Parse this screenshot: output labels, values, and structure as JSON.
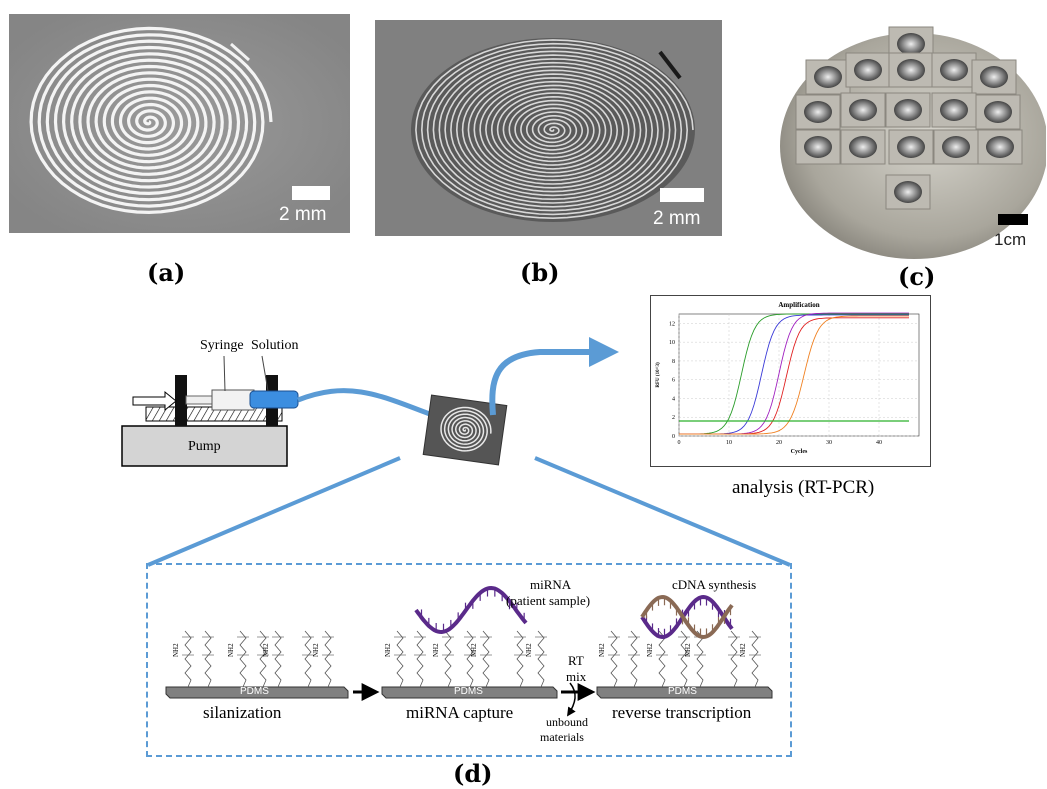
{
  "panels": {
    "a": {
      "label": "(a)",
      "scale": "2 mm"
    },
    "b": {
      "label": "(b)",
      "scale": "2 mm"
    },
    "c": {
      "label": "(c)",
      "scale": "1cm"
    },
    "d": {
      "label": "(d)"
    }
  },
  "setup": {
    "syringe": "Syringe",
    "solution": "Solution",
    "pump": "Pump"
  },
  "chart": {
    "title": "Amplification",
    "ylabel": "RFU (10^3)",
    "xlabel": "Cycles",
    "caption": "analysis (RT-PCR)"
  },
  "chart_data": {
    "type": "line",
    "title": "Amplification",
    "xlabel": "Cycles",
    "ylabel": "RFU (10^3)",
    "xlim": [
      0,
      48
    ],
    "ylim": [
      0,
      13
    ],
    "xticks": [
      0,
      10,
      20,
      30,
      40
    ],
    "yticks": [
      0,
      2,
      4,
      6,
      8,
      10,
      12
    ],
    "series_colors": [
      "#2a9d2a",
      "#3a3ad8",
      "#a020c0",
      "#e02020",
      "#f08020",
      "#2ab02a"
    ],
    "curves": [
      {
        "ct": 12.5,
        "plateau": 12.8,
        "k": 0.75
      },
      {
        "ct": 16.5,
        "plateau": 12.7,
        "k": 0.75
      },
      {
        "ct": 20.0,
        "plateau": 12.9,
        "k": 0.75
      },
      {
        "ct": 21.5,
        "plateau": 12.4,
        "k": 0.75
      },
      {
        "ct": 25.0,
        "plateau": 12.6,
        "k": 0.7
      }
    ],
    "threshold": 1.6,
    "grid": true
  },
  "diagram": {
    "step1": "silanization",
    "step2": "miRNA capture",
    "step3": "reverse transcription",
    "substrate": "PDMS",
    "amine": "NH2",
    "mirna_label": "miRNA",
    "patient_label": "(patient sample)",
    "cdna_label": "cDNA synthesis",
    "rt_label": "RT",
    "mix_label": "mix",
    "unbound_label": "unbound",
    "materials_label": "materials"
  }
}
